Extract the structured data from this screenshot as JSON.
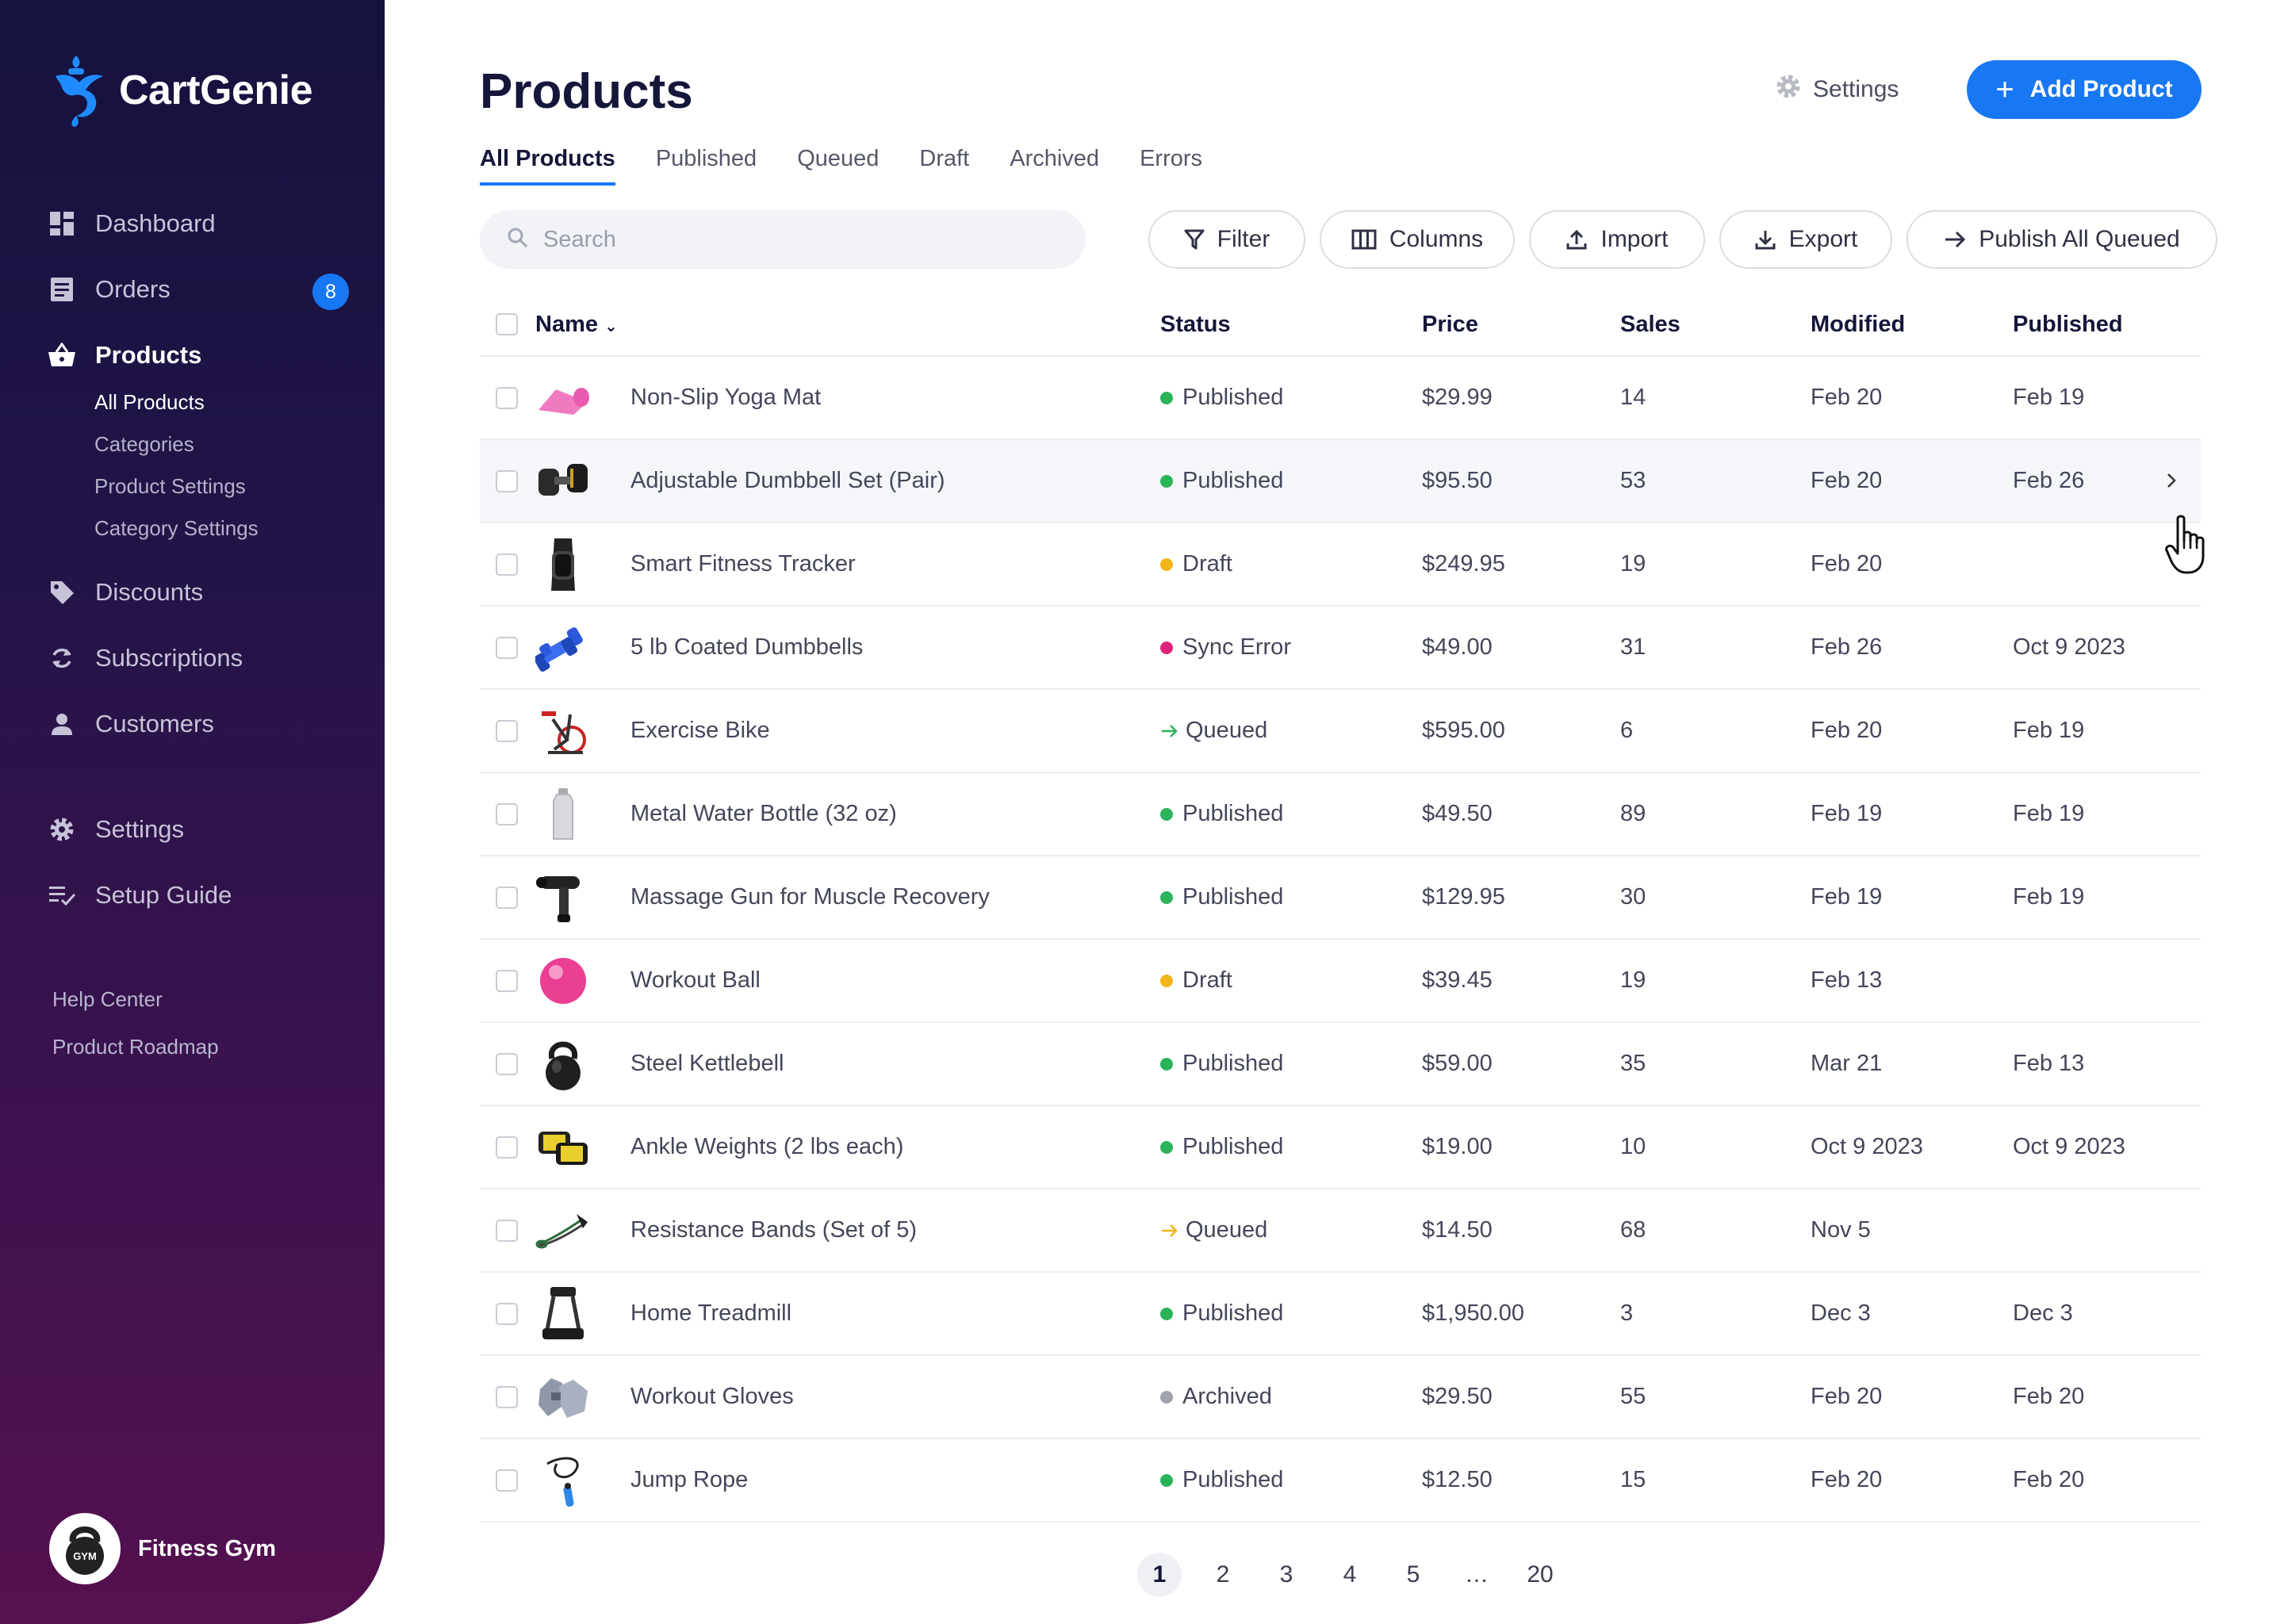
{
  "app": {
    "name": "CartGenie"
  },
  "sidebar": {
    "nav": [
      {
        "label": "Dashboard",
        "icon": "dashboard-icon"
      },
      {
        "label": "Orders",
        "icon": "orders-icon",
        "badge": "8"
      },
      {
        "label": "Products",
        "icon": "basket-icon",
        "active": true
      }
    ],
    "subnav": [
      {
        "label": "All Products",
        "active": true
      },
      {
        "label": "Categories"
      },
      {
        "label": "Product Settings"
      },
      {
        "label": "Category Settings"
      }
    ],
    "nav2": [
      {
        "label": "Discounts",
        "icon": "tag-icon"
      },
      {
        "label": "Subscriptions",
        "icon": "refresh-icon"
      },
      {
        "label": "Customers",
        "icon": "user-icon"
      }
    ],
    "nav3": [
      {
        "label": "Settings",
        "icon": "gear-icon"
      },
      {
        "label": "Setup Guide",
        "icon": "checklist-icon"
      }
    ],
    "help": [
      "Help Center",
      "Product Roadmap"
    ],
    "account": {
      "name": "Fitness Gym",
      "avatar_text": "GYM"
    }
  },
  "header": {
    "title": "Products",
    "settings_label": "Settings",
    "add_label": "Add Product"
  },
  "tabs": [
    "All Products",
    "Published",
    "Queued",
    "Draft",
    "Archived",
    "Errors"
  ],
  "toolbar": {
    "search_placeholder": "Search",
    "filter": "Filter",
    "columns": "Columns",
    "import": "Import",
    "export": "Export",
    "publish_all": "Publish All Queued"
  },
  "table": {
    "headers": {
      "name": "Name",
      "status": "Status",
      "price": "Price",
      "sales": "Sales",
      "modified": "Modified",
      "published": "Published"
    },
    "rows": [
      {
        "name": "Non-Slip Yoga Mat",
        "status": "Published",
        "price": "$29.99",
        "sales": "14",
        "modified": "Feb 20",
        "published": "Feb 19",
        "thumb": "yoga-mat"
      },
      {
        "name": "Adjustable Dumbbell Set (Pair)",
        "status": "Published",
        "price": "$95.50",
        "sales": "53",
        "modified": "Feb 20",
        "published": "Feb 26",
        "thumb": "dumbbell-set"
      },
      {
        "name": "Smart Fitness Tracker",
        "status": "Draft",
        "price": "$249.95",
        "sales": "19",
        "modified": "Feb 20",
        "published": "",
        "thumb": "tracker"
      },
      {
        "name": "5 lb Coated Dumbbells",
        "status": "Sync Error",
        "price": "$49.00",
        "sales": "31",
        "modified": "Feb 26",
        "published": "Oct 9 2023",
        "thumb": "blue-dumbbells"
      },
      {
        "name": "Exercise Bike",
        "status": "Queued",
        "price": "$595.00",
        "sales": "6",
        "modified": "Feb 20",
        "published": "Feb 19",
        "thumb": "bike"
      },
      {
        "name": "Metal Water Bottle (32 oz)",
        "status": "Published",
        "price": "$49.50",
        "sales": "89",
        "modified": "Feb 19",
        "published": "Feb 19",
        "thumb": "bottle"
      },
      {
        "name": "Massage Gun for Muscle Recovery",
        "status": "Published",
        "price": "$129.95",
        "sales": "30",
        "modified": "Feb 19",
        "published": "Feb 19",
        "thumb": "massage-gun"
      },
      {
        "name": "Workout Ball",
        "status": "Draft",
        "price": "$39.45",
        "sales": "19",
        "modified": "Feb 13",
        "published": "",
        "thumb": "ball"
      },
      {
        "name": "Steel Kettlebell",
        "status": "Published",
        "price": "$59.00",
        "sales": "35",
        "modified": "Mar 21",
        "published": "Feb 13",
        "thumb": "kettlebell"
      },
      {
        "name": "Ankle Weights (2 lbs each)",
        "status": "Published",
        "price": "$19.00",
        "sales": "10",
        "modified": "Oct 9 2023",
        "published": "Oct 9 2023",
        "thumb": "ankle-weights"
      },
      {
        "name": "Resistance Bands (Set of 5)",
        "status": "Queued",
        "price": "$14.50",
        "sales": "68",
        "modified": "Nov 5",
        "published": "",
        "thumb": "bands"
      },
      {
        "name": "Home Treadmill",
        "status": "Published",
        "price": "$1,950.00",
        "sales": "3",
        "modified": "Dec 3",
        "published": "Dec 3",
        "thumb": "treadmill"
      },
      {
        "name": "Workout Gloves",
        "status": "Archived",
        "price": "$29.50",
        "sales": "55",
        "modified": "Feb 20",
        "published": "Feb 20",
        "thumb": "gloves"
      },
      {
        "name": "Jump Rope",
        "status": "Published",
        "price": "$12.50",
        "sales": "15",
        "modified": "Feb 20",
        "published": "Feb 20",
        "thumb": "jump-rope"
      }
    ]
  },
  "status_colors": {
    "Published": "#2bb35a",
    "Draft": "#f2b418",
    "Sync Error": "#e0217a",
    "Queued": "#2bb35a",
    "Archived": "#a0a2ad"
  },
  "queued_arrow_colors": [
    "#2bb35a",
    "#f2b418"
  ],
  "pagination": {
    "pages": [
      "1",
      "2",
      "3",
      "4",
      "5",
      "…",
      "20"
    ],
    "current": "1"
  }
}
